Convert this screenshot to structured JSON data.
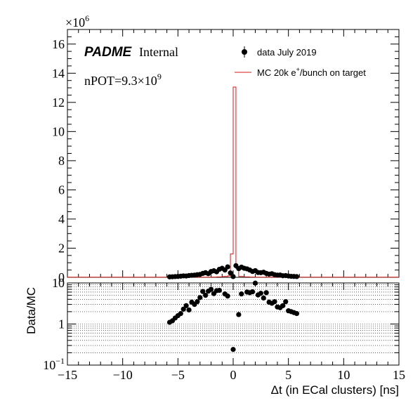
{
  "chart_data": [
    {
      "type": "histogram",
      "panel": "top",
      "multiplier_label": "×10",
      "multiplier_exponent": "6",
      "xlim": [
        -15,
        15
      ],
      "ylim": [
        0,
        17
      ],
      "yticks": [
        0,
        2,
        4,
        6,
        8,
        10,
        12,
        14,
        16
      ],
      "ytick_labels": [
        "0",
        "2",
        "4",
        "6",
        "8",
        "10",
        "12",
        "14",
        "16"
      ],
      "experiment_label": "PADME",
      "status_label": "Internal",
      "pot_label": "nPOT=9.3×10",
      "pot_exponent": "9",
      "series": [
        {
          "name": "data July 2019",
          "style": "markers",
          "color": "#000000",
          "x": [
            -5.75,
            -5.5,
            -5.25,
            -5.0,
            -4.75,
            -4.5,
            -4.25,
            -4.0,
            -3.75,
            -3.5,
            -3.25,
            -3.0,
            -2.75,
            -2.5,
            -2.25,
            -2.0,
            -1.75,
            -1.5,
            -1.25,
            -1.0,
            -0.75,
            -0.5,
            -0.25,
            0.0,
            0.25,
            0.5,
            0.75,
            1.0,
            1.25,
            1.5,
            1.75,
            2.0,
            2.25,
            2.5,
            2.75,
            3.0,
            3.25,
            3.5,
            3.75,
            4.0,
            4.25,
            4.5,
            4.75,
            5.0,
            5.25,
            5.5,
            5.75
          ],
          "y": [
            0.03,
            0.04,
            0.05,
            0.06,
            0.08,
            0.1,
            0.09,
            0.12,
            0.14,
            0.15,
            0.18,
            0.2,
            0.27,
            0.32,
            0.25,
            0.4,
            0.45,
            0.38,
            0.55,
            0.62,
            0.5,
            0.72,
            0.3,
            0.05,
            0.8,
            0.6,
            0.7,
            0.62,
            0.58,
            0.5,
            0.4,
            0.46,
            0.33,
            0.32,
            0.35,
            0.27,
            0.22,
            0.25,
            0.18,
            0.15,
            0.16,
            0.11,
            0.12,
            0.09,
            0.07,
            0.06,
            0.05
          ]
        },
        {
          "name": "MC 20k e",
          "name_sup": "+",
          "name_tail": "/bunch on target",
          "style": "step",
          "color": "#d11a1a",
          "edges": [
            -15,
            -2.0,
            -1.5,
            -1.0,
            -0.5,
            -0.25,
            0.0,
            0.25,
            0.5,
            1.0,
            1.5,
            2.0,
            15
          ],
          "values": [
            0.01,
            0.02,
            0.03,
            0.06,
            0.1,
            1.6,
            13.05,
            0.6,
            0.06,
            0.03,
            0.02,
            0.01
          ]
        }
      ]
    },
    {
      "type": "scatter",
      "panel": "bottom",
      "ylabel": "Data/MC",
      "xlabel": "Δt (in ECal clusters) [ns]",
      "yscale": "log",
      "xlim": [
        -15,
        15
      ],
      "ylim": [
        0.1,
        10
      ],
      "xticks": [
        -15,
        -10,
        -5,
        0,
        5,
        10,
        15
      ],
      "xtick_labels": [
        "−15",
        "−10",
        "−5",
        "0",
        "5",
        "10",
        "15"
      ],
      "ytick_labels": [
        {
          "value": 0.1,
          "base": "10",
          "exp": "−1"
        },
        {
          "value": 1,
          "base": "1",
          "exp": ""
        },
        {
          "value": 10,
          "base": "10",
          "exp": ""
        }
      ],
      "grid": true,
      "x": [
        -5.75,
        -5.5,
        -5.25,
        -5.0,
        -4.75,
        -4.5,
        -4.25,
        -4.0,
        -3.75,
        -3.5,
        -3.25,
        -3.0,
        -2.75,
        -2.5,
        -2.25,
        -2.0,
        -1.75,
        -1.5,
        -1.25,
        -0.75,
        -0.5,
        0.0,
        0.5,
        0.75,
        1.25,
        1.5,
        1.75,
        2.0,
        2.25,
        2.5,
        2.75,
        3.0,
        3.25,
        3.5,
        3.75,
        4.0,
        4.25,
        4.5,
        4.75,
        5.0,
        5.25,
        5.5,
        5.75
      ],
      "y": [
        1.1,
        1.2,
        1.4,
        1.6,
        1.8,
        2.3,
        2.8,
        2.2,
        3.4,
        3.0,
        3.5,
        4.4,
        6.2,
        5.0,
        6.3,
        7.0,
        5.5,
        6.5,
        6.6,
        5.4,
        4.8,
        0.24,
        1.7,
        5.4,
        6.0,
        5.8,
        6.1,
        9.9,
        5.1,
        5.6,
        4.3,
        5.8,
        3.4,
        3.2,
        3.5,
        2.6,
        2.5,
        2.8,
        3.5,
        2.1,
        2.0,
        1.9,
        1.8
      ]
    }
  ]
}
